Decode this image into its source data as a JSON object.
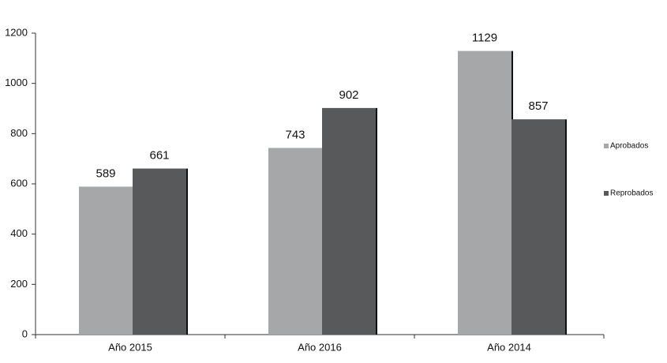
{
  "chart_data": {
    "type": "bar",
    "categories": [
      "Año 2015",
      "Año 2016",
      "Año 2014"
    ],
    "series": [
      {
        "name": "Aprobados",
        "color": "#a6a7a9",
        "values": [
          589,
          743,
          1129
        ]
      },
      {
        "name": "Reprobados",
        "color": "#58595b",
        "values": [
          661,
          902,
          857
        ]
      }
    ],
    "ylim": [
      0,
      1200
    ],
    "yticks": [
      0,
      200,
      400,
      600,
      800,
      1000,
      1200
    ],
    "grid": false,
    "legend": "right"
  }
}
